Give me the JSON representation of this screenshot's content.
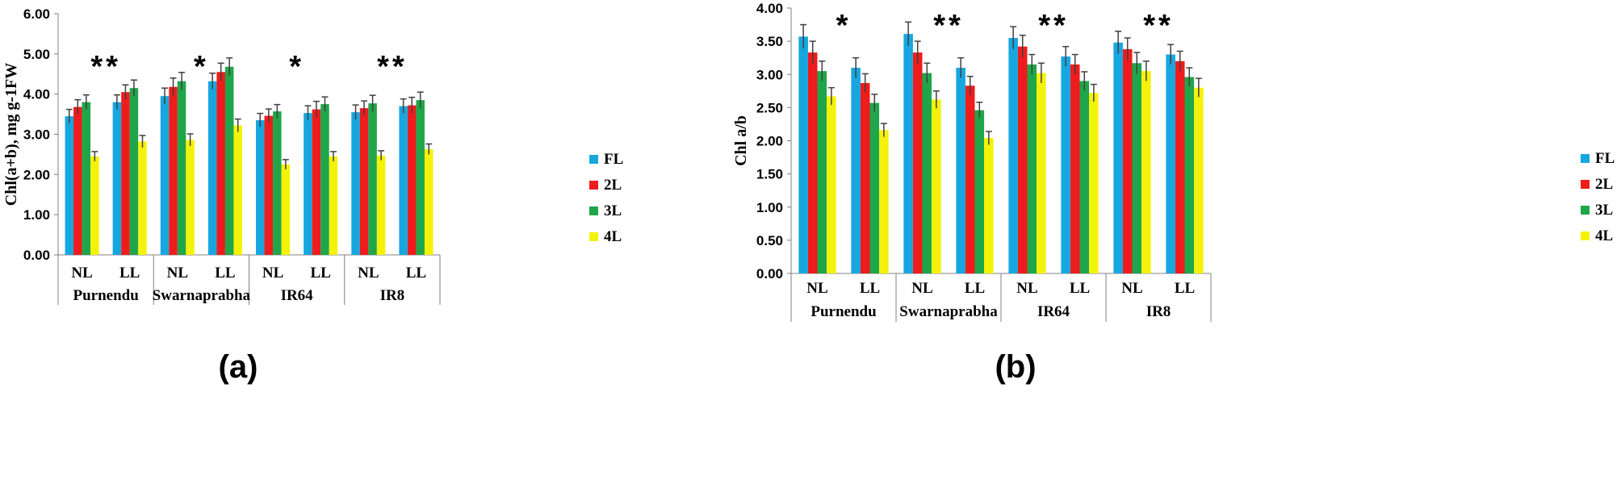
{
  "chart_data": [
    {
      "type": "bar",
      "panel_label": "(a)",
      "ylabel": "Chl(a+b), mg g-1FW",
      "ylim": [
        0,
        6
      ],
      "ytick_labels": [
        "0.00",
        "1.00",
        "2.00",
        "3.00",
        "4.00",
        "5.00",
        "6.00"
      ],
      "grid": false,
      "legend_position": "right",
      "groups": [
        {
          "name": "Purnendu",
          "categories": [
            "NL",
            "LL"
          ],
          "significance": "**"
        },
        {
          "name": "Swarnaprabha",
          "categories": [
            "NL",
            "LL"
          ],
          "significance": "*"
        },
        {
          "name": "IR64",
          "categories": [
            "NL",
            "LL"
          ],
          "significance": "*"
        },
        {
          "name": "IR8",
          "categories": [
            "NL",
            "LL"
          ],
          "significance": "**"
        }
      ],
      "series": [
        {
          "name": "FL",
          "color": "#17a7e0",
          "values": [
            3.45,
            3.8,
            3.95,
            4.32,
            3.35,
            3.53,
            3.55,
            3.7
          ],
          "errors": [
            0.17,
            0.18,
            0.2,
            0.2,
            0.17,
            0.18,
            0.18,
            0.18
          ]
        },
        {
          "name": "2L",
          "color": "#ee1c1c",
          "values": [
            3.68,
            4.05,
            4.18,
            4.55,
            3.46,
            3.62,
            3.65,
            3.72
          ],
          "errors": [
            0.18,
            0.18,
            0.22,
            0.22,
            0.17,
            0.2,
            0.18,
            0.2
          ]
        },
        {
          "name": "3L",
          "color": "#1fa64a",
          "values": [
            3.8,
            4.15,
            4.32,
            4.68,
            3.57,
            3.75,
            3.77,
            3.85
          ],
          "errors": [
            0.18,
            0.2,
            0.22,
            0.22,
            0.17,
            0.18,
            0.2,
            0.2
          ]
        },
        {
          "name": "4L",
          "color": "#f5f20a",
          "values": [
            2.45,
            2.82,
            2.86,
            3.22,
            2.25,
            2.45,
            2.47,
            2.63
          ],
          "errors": [
            0.12,
            0.15,
            0.15,
            0.16,
            0.12,
            0.12,
            0.12,
            0.13
          ]
        }
      ]
    },
    {
      "type": "bar",
      "panel_label": "(b)",
      "ylabel": "Chl a/b",
      "ylim": [
        0,
        4
      ],
      "ytick_labels": [
        "0.00",
        "0.50",
        "1.00",
        "1.50",
        "2.00",
        "2.50",
        "3.00",
        "3.50",
        "4.00"
      ],
      "grid": false,
      "legend_position": "right",
      "groups": [
        {
          "name": "Purnendu",
          "categories": [
            "NL",
            "LL"
          ],
          "significance": "*"
        },
        {
          "name": "Swarnaprabha",
          "categories": [
            "NL",
            "LL"
          ],
          "significance": "**"
        },
        {
          "name": "IR64",
          "categories": [
            "NL",
            "LL"
          ],
          "significance": "**"
        },
        {
          "name": "IR8",
          "categories": [
            "NL",
            "LL"
          ],
          "significance": "**"
        }
      ],
      "series": [
        {
          "name": "FL",
          "color": "#17a7e0",
          "values": [
            3.57,
            3.1,
            3.61,
            3.1,
            3.55,
            3.27,
            3.48,
            3.3
          ],
          "errors": [
            0.18,
            0.15,
            0.18,
            0.15,
            0.17,
            0.15,
            0.17,
            0.15
          ]
        },
        {
          "name": "2L",
          "color": "#ee1c1c",
          "values": [
            3.33,
            2.87,
            3.33,
            2.83,
            3.42,
            3.15,
            3.38,
            3.2
          ],
          "errors": [
            0.17,
            0.14,
            0.17,
            0.14,
            0.17,
            0.15,
            0.17,
            0.15
          ]
        },
        {
          "name": "3L",
          "color": "#1fa64a",
          "values": [
            3.05,
            2.57,
            3.02,
            2.46,
            3.15,
            2.9,
            3.17,
            2.96
          ],
          "errors": [
            0.15,
            0.13,
            0.15,
            0.12,
            0.15,
            0.14,
            0.16,
            0.14
          ]
        },
        {
          "name": "4L",
          "color": "#f5f20a",
          "values": [
            2.67,
            2.16,
            2.62,
            2.04,
            3.02,
            2.72,
            3.05,
            2.8
          ],
          "errors": [
            0.13,
            0.1,
            0.13,
            0.1,
            0.15,
            0.13,
            0.15,
            0.14
          ]
        }
      ]
    }
  ]
}
